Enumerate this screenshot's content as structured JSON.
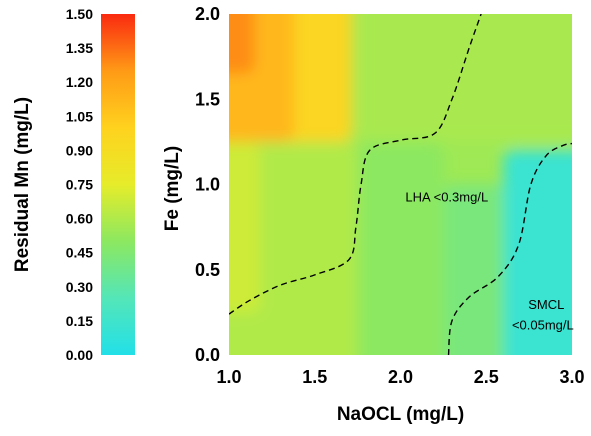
{
  "chart_data": {
    "type": "heatmap",
    "xlabel": "NaOCL (mg/L)",
    "ylabel": "Fe (mg/L)",
    "colorbar_label": "Residual Mn (mg/L)",
    "xlim": [
      1.0,
      3.0
    ],
    "ylim": [
      0.0,
      2.0
    ],
    "x_ticks": [
      "1.0",
      "1.5",
      "2.0",
      "2.5",
      "3.0"
    ],
    "y_ticks": [
      "0.0",
      "0.5",
      "1.0",
      "1.5",
      "2.0"
    ],
    "colorbar_range": [
      0.0,
      1.5
    ],
    "colorbar_ticks": [
      "0.00",
      "0.15",
      "0.30",
      "0.45",
      "0.60",
      "0.75",
      "0.90",
      "1.05",
      "1.20",
      "1.35",
      "1.50"
    ],
    "colormap": [
      "#22e0e8",
      "#54e6b8",
      "#8ce860",
      "#e6ec2a",
      "#ffd21e",
      "#ff9a16",
      "#fa2a10"
    ],
    "regions": [
      {
        "x": [
          1.0,
          1.75
        ],
        "y": [
          0.0,
          1.25
        ],
        "value": 0.6
      },
      {
        "x": [
          1.0,
          1.18
        ],
        "y": [
          0.25,
          1.25
        ],
        "value": 0.68
      },
      {
        "x": [
          1.0,
          1.72
        ],
        "y": [
          1.25,
          2.0
        ],
        "value": 0.96
      },
      {
        "x": [
          1.0,
          1.38
        ],
        "y": [
          1.25,
          2.0
        ],
        "value": 1.12
      },
      {
        "x": [
          1.0,
          1.15
        ],
        "y": [
          1.65,
          2.0
        ],
        "value": 1.28
      },
      {
        "x": [
          1.75,
          3.0
        ],
        "y": [
          1.25,
          2.0
        ],
        "value": 0.58
      },
      {
        "x": [
          1.75,
          2.25
        ],
        "y": [
          0.0,
          1.25
        ],
        "value": 0.5
      },
      {
        "x": [
          2.25,
          2.75
        ],
        "y": [
          0.0,
          1.0
        ],
        "value": 0.42
      },
      {
        "x": [
          2.6,
          3.0
        ],
        "y": [
          0.0,
          1.2
        ],
        "value": 0.12
      }
    ],
    "contours": [
      {
        "label": "LHA <0.3mg/L",
        "points": [
          [
            1.0,
            0.24
          ],
          [
            1.12,
            0.32
          ],
          [
            1.3,
            0.41
          ],
          [
            1.5,
            0.47
          ],
          [
            1.7,
            0.56
          ],
          [
            1.74,
            0.75
          ],
          [
            1.77,
            1.0
          ],
          [
            1.82,
            1.2
          ],
          [
            2.0,
            1.26
          ],
          [
            2.2,
            1.3
          ],
          [
            2.3,
            1.5
          ],
          [
            2.4,
            1.8
          ],
          [
            2.47,
            2.0
          ]
        ]
      },
      {
        "label": "SMCL <0.05mg/L",
        "points": [
          [
            2.28,
            0.0
          ],
          [
            2.3,
            0.2
          ],
          [
            2.4,
            0.34
          ],
          [
            2.57,
            0.46
          ],
          [
            2.69,
            0.65
          ],
          [
            2.76,
            1.0
          ],
          [
            2.85,
            1.17
          ],
          [
            2.95,
            1.23
          ],
          [
            3.0,
            1.24
          ]
        ]
      }
    ],
    "annotations": [
      {
        "text": "LHA <0.3mg/L",
        "x": 2.27,
        "y": 0.9
      },
      {
        "text": "SMCL",
        "x": 2.85,
        "y": 0.27
      },
      {
        "text": "<0.05mg/L",
        "x": 2.83,
        "y": 0.15
      }
    ]
  }
}
